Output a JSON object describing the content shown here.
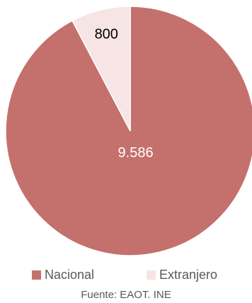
{
  "chart_data": {
    "type": "pie",
    "slices": [
      {
        "label": "Nacional",
        "value": 9586,
        "display": "9.586",
        "color": "#c4706c",
        "label_color": "#ffffff"
      },
      {
        "label": "Extranjero",
        "value": 800,
        "display": "800",
        "color": "#f6e5e4",
        "label_color": "#000000"
      }
    ],
    "legend_position": "bottom",
    "source": "Fuente: EAOT. INE"
  }
}
